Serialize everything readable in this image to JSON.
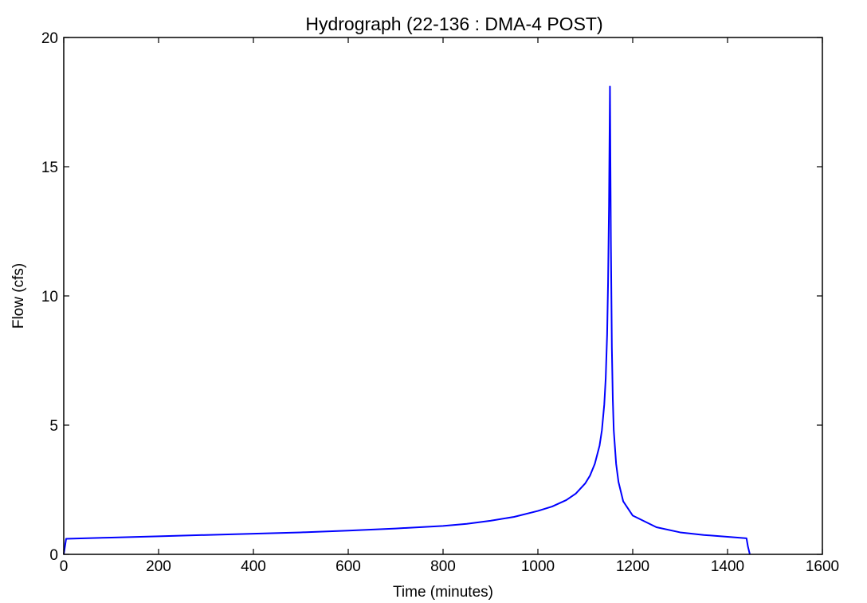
{
  "chart_data": {
    "type": "line",
    "title": "Hydrograph (22-136 : DMA-4 POST)",
    "xlabel": "Time (minutes)",
    "ylabel": "Flow (cfs)",
    "xlim": [
      0,
      1600
    ],
    "ylim": [
      0,
      20
    ],
    "xticks": [
      0,
      200,
      400,
      600,
      800,
      1000,
      1200,
      1400,
      1600
    ],
    "xtick_labels": [
      "0",
      "200",
      "400",
      "600",
      "800",
      "1000",
      "1200",
      "1400",
      "1600"
    ],
    "yticks": [
      0,
      5,
      10,
      15,
      20
    ],
    "ytick_labels": [
      "0",
      "5",
      "10",
      "15",
      "20"
    ],
    "grid": false,
    "legend": false,
    "series": [
      {
        "color": "#0000ff",
        "x": [
          0,
          5,
          100,
          200,
          300,
          400,
          500,
          600,
          700,
          800,
          850,
          900,
          950,
          1000,
          1030,
          1060,
          1080,
          1100,
          1110,
          1120,
          1130,
          1135,
          1140,
          1143,
          1146,
          1148,
          1150,
          1152,
          1154,
          1156,
          1158,
          1160,
          1165,
          1170,
          1180,
          1200,
          1250,
          1300,
          1350,
          1400,
          1440,
          1443,
          1447
        ],
        "y": [
          0,
          0.6,
          0.65,
          0.7,
          0.75,
          0.8,
          0.85,
          0.92,
          1.0,
          1.1,
          1.18,
          1.3,
          1.45,
          1.68,
          1.85,
          2.1,
          2.35,
          2.75,
          3.05,
          3.5,
          4.2,
          4.8,
          5.8,
          6.8,
          8.5,
          10.5,
          13.5,
          18.1,
          12.0,
          8.0,
          6.0,
          4.8,
          3.5,
          2.8,
          2.05,
          1.5,
          1.05,
          0.85,
          0.75,
          0.68,
          0.62,
          0.3,
          0
        ]
      }
    ]
  }
}
